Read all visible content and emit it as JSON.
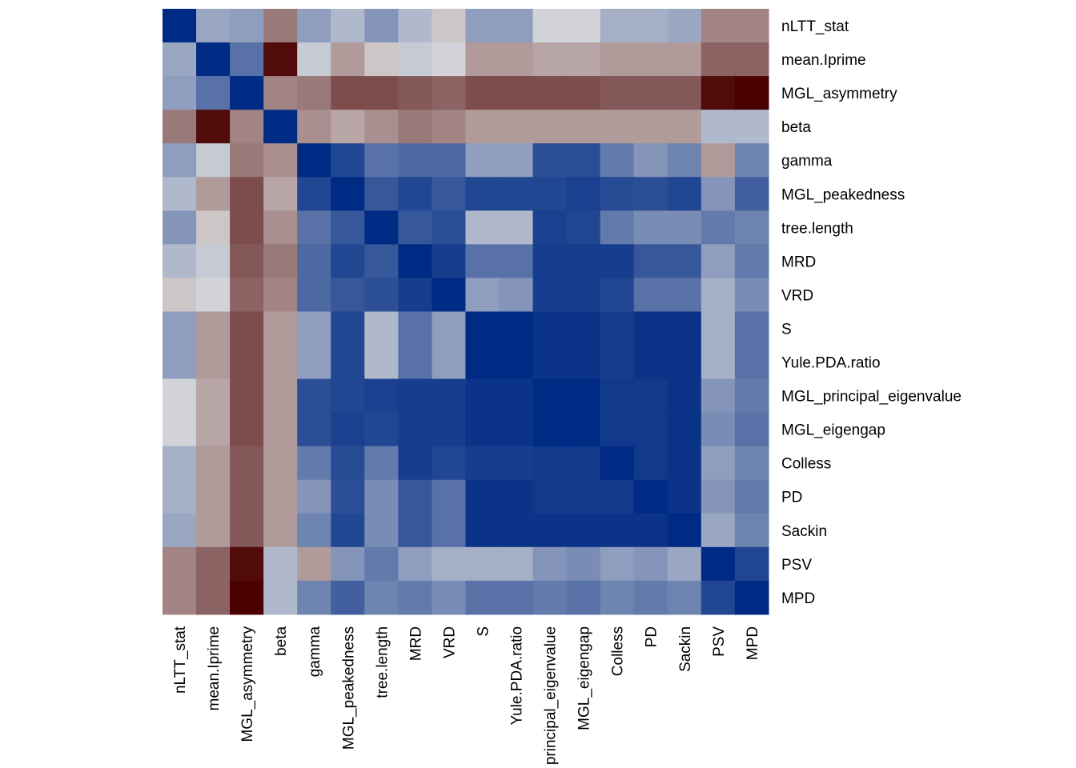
{
  "chart_data": {
    "type": "heatmap",
    "title": "",
    "xlabel": "",
    "ylabel": "",
    "legend": "none",
    "labels": [
      "nLTT_stat",
      "mean.Iprime",
      "MGL_asymmetry",
      "beta",
      "gamma",
      "MGL_peakedness",
      "tree.length",
      "MRD",
      "VRD",
      "S",
      "Yule.PDA.ratio",
      "MGL_principal_eigenvalue",
      "MGL_eigengap",
      "Colless",
      "PD",
      "Sackin",
      "PSV",
      "MPD"
    ],
    "x_tick_labels": [
      "nLTT_stat",
      "mean.Iprime",
      "MGL_asymmetry",
      "beta",
      "gamma",
      "MGL_peakedness",
      "tree.length",
      "MRD",
      "VRD",
      "S",
      "Yule.PDA.ratio",
      "principal_eigenvalue",
      "MGL_eigengap",
      "Colless",
      "PD",
      "Sackin",
      "PSV",
      "MPD"
    ],
    "color_scale": {
      "negative": "#4a0000",
      "zero": "#dcdcdc",
      "positive": "#002b85"
    },
    "values": [
      [
        1.0,
        0.3,
        0.35,
        -0.45,
        0.35,
        0.2,
        0.4,
        0.2,
        -0.1,
        0.35,
        0.35,
        0.05,
        0.05,
        0.25,
        0.25,
        0.3,
        -0.4,
        -0.4
      ],
      [
        0.3,
        1.0,
        0.6,
        -0.95,
        0.1,
        -0.3,
        -0.1,
        0.1,
        0.05,
        -0.3,
        -0.3,
        -0.25,
        -0.25,
        -0.3,
        -0.3,
        -0.3,
        -0.55,
        -0.55
      ],
      [
        0.35,
        0.6,
        1.0,
        -0.4,
        -0.45,
        -0.65,
        -0.65,
        -0.6,
        -0.55,
        -0.65,
        -0.65,
        -0.65,
        -0.65,
        -0.6,
        -0.6,
        -0.6,
        -0.95,
        -1.0
      ],
      [
        -0.45,
        -0.95,
        -0.4,
        1.0,
        -0.35,
        -0.25,
        -0.35,
        -0.45,
        -0.4,
        -0.3,
        -0.3,
        -0.3,
        -0.3,
        -0.3,
        -0.3,
        -0.3,
        0.2,
        0.2
      ],
      [
        0.35,
        0.1,
        -0.45,
        -0.35,
        1.0,
        0.85,
        0.6,
        0.65,
        0.65,
        0.35,
        0.35,
        0.8,
        0.8,
        0.55,
        0.4,
        0.5,
        -0.3,
        0.5
      ],
      [
        0.2,
        -0.3,
        -0.65,
        -0.25,
        0.85,
        1.0,
        0.75,
        0.85,
        0.75,
        0.85,
        0.85,
        0.85,
        0.88,
        0.82,
        0.8,
        0.85,
        0.4,
        0.7
      ],
      [
        0.4,
        -0.1,
        -0.65,
        -0.35,
        0.6,
        0.75,
        1.0,
        0.75,
        0.8,
        0.2,
        0.2,
        0.88,
        0.85,
        0.55,
        0.45,
        0.45,
        0.55,
        0.5
      ],
      [
        0.2,
        0.1,
        -0.6,
        -0.45,
        0.65,
        0.85,
        0.75,
        1.0,
        0.9,
        0.6,
        0.6,
        0.9,
        0.9,
        0.9,
        0.75,
        0.75,
        0.35,
        0.55
      ],
      [
        -0.1,
        0.05,
        -0.55,
        -0.4,
        0.65,
        0.75,
        0.8,
        0.9,
        1.0,
        0.35,
        0.4,
        0.9,
        0.9,
        0.85,
        0.6,
        0.6,
        0.25,
        0.45
      ],
      [
        0.35,
        -0.3,
        -0.65,
        -0.3,
        0.35,
        0.85,
        0.2,
        0.6,
        0.35,
        1.0,
        1.0,
        0.95,
        0.95,
        0.9,
        0.95,
        0.95,
        0.25,
        0.6
      ],
      [
        0.35,
        -0.3,
        -0.65,
        -0.3,
        0.35,
        0.85,
        0.2,
        0.6,
        0.35,
        1.0,
        1.0,
        0.95,
        0.95,
        0.9,
        0.95,
        0.95,
        0.25,
        0.6
      ],
      [
        0.05,
        -0.25,
        -0.65,
        -0.3,
        0.8,
        0.85,
        0.88,
        0.9,
        0.9,
        0.95,
        0.95,
        1.0,
        1.0,
        0.92,
        0.92,
        0.95,
        0.4,
        0.55
      ],
      [
        0.05,
        -0.25,
        -0.65,
        -0.3,
        0.8,
        0.88,
        0.85,
        0.9,
        0.9,
        0.95,
        0.95,
        1.0,
        1.0,
        0.92,
        0.92,
        0.95,
        0.45,
        0.6
      ],
      [
        0.25,
        -0.3,
        -0.6,
        -0.3,
        0.55,
        0.82,
        0.55,
        0.9,
        0.85,
        0.9,
        0.9,
        0.92,
        0.92,
        1.0,
        0.92,
        0.95,
        0.35,
        0.5
      ],
      [
        0.25,
        -0.3,
        -0.6,
        -0.3,
        0.4,
        0.8,
        0.45,
        0.75,
        0.6,
        0.95,
        0.95,
        0.92,
        0.92,
        0.92,
        1.0,
        0.95,
        0.4,
        0.55
      ],
      [
        0.3,
        -0.3,
        -0.6,
        -0.3,
        0.5,
        0.85,
        0.45,
        0.75,
        0.6,
        0.95,
        0.95,
        0.95,
        0.95,
        0.95,
        0.95,
        1.0,
        0.3,
        0.5
      ],
      [
        -0.4,
        -0.55,
        -0.95,
        0.2,
        -0.3,
        0.4,
        0.55,
        0.35,
        0.25,
        0.25,
        0.25,
        0.4,
        0.45,
        0.35,
        0.4,
        0.3,
        1.0,
        0.85
      ],
      [
        -0.4,
        -0.55,
        -1.0,
        0.2,
        0.5,
        0.7,
        0.5,
        0.55,
        0.45,
        0.6,
        0.6,
        0.55,
        0.6,
        0.5,
        0.55,
        0.5,
        0.85,
        1.0
      ]
    ]
  }
}
